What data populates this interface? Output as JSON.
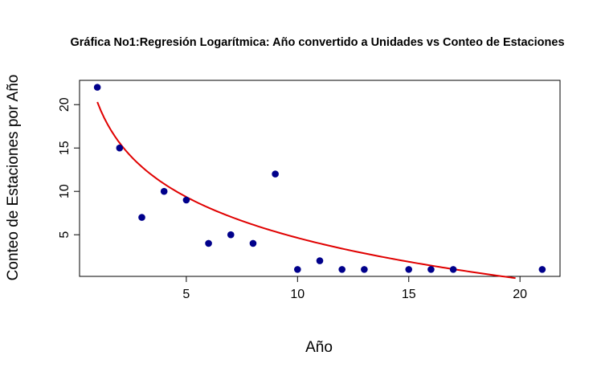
{
  "chart_data": {
    "type": "scatter",
    "title": "Gráfica No1:Regresión Logarítmica: Año convertido a Unidades vs Conteo de Estaciones",
    "xlabel": "Año",
    "ylabel": "Conteo de Estaciones por Año",
    "xlim": [
      0.2,
      21.8
    ],
    "ylim": [
      0.2,
      22.8
    ],
    "xticks": [
      5,
      10,
      15,
      20
    ],
    "yticks": [
      5,
      10,
      15,
      20
    ],
    "grid": false,
    "legend": "none",
    "series": [
      {
        "type": "scatter",
        "color": "#00008B",
        "x": [
          1,
          2,
          3,
          4,
          5,
          6,
          7,
          8,
          9,
          10,
          11,
          12,
          13,
          15,
          16,
          17,
          21
        ],
        "y": [
          22,
          15,
          7,
          10,
          9,
          4,
          5,
          4,
          12,
          1,
          2,
          1,
          1,
          1,
          1,
          1,
          1
        ]
      },
      {
        "type": "line",
        "color": "#E00000",
        "model": "log",
        "intercept": 20.3,
        "slope": -6.8,
        "x_range": [
          1,
          19.8
        ]
      }
    ]
  }
}
